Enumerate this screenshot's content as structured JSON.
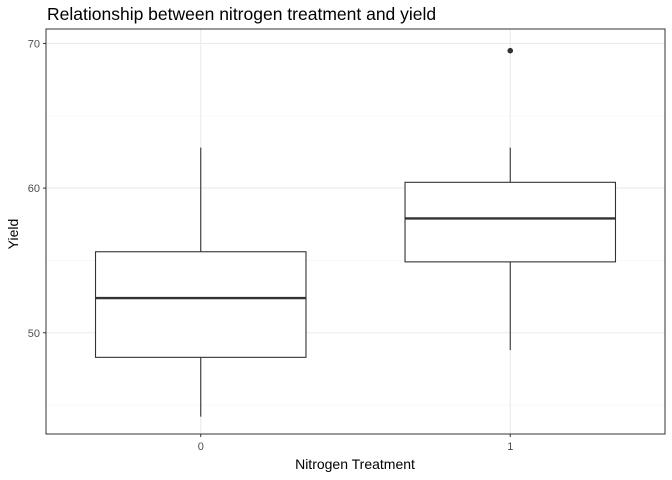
{
  "chart_data": {
    "type": "boxplot",
    "title": "Relationship between nitrogen treatment and yield",
    "xlabel": "Nitrogen Treatment",
    "ylabel": "Yield",
    "categories": [
      "0",
      "1"
    ],
    "boxes": [
      {
        "category": "0",
        "whisker_low": 44.2,
        "q1": 48.3,
        "median": 52.4,
        "q3": 55.6,
        "whisker_high": 62.8,
        "outliers": []
      },
      {
        "category": "1",
        "whisker_low": 48.8,
        "q1": 54.9,
        "median": 57.9,
        "q3": 60.4,
        "whisker_high": 62.8,
        "outliers": [
          69.5
        ]
      }
    ],
    "yticks": [
      50,
      60,
      70
    ],
    "ylim": [
      43.0,
      71.0
    ],
    "grid": true,
    "theme": "bw"
  },
  "colors": {
    "box_outline": "#333333",
    "box_fill": "#ffffff",
    "grid_major": "#ebebeb",
    "grid_minor": "#f5f5f5",
    "panel_border": "#333333"
  }
}
